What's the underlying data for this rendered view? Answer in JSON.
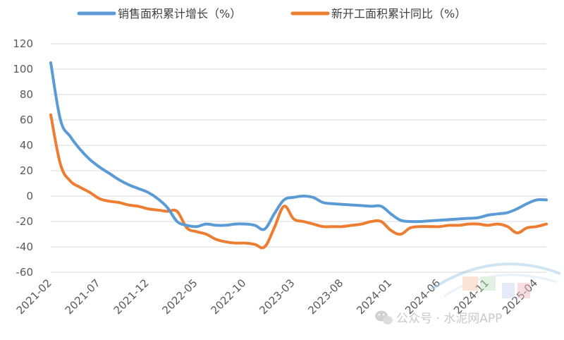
{
  "chart_data": {
    "type": "line",
    "title": "",
    "xlabel": "",
    "ylabel": "",
    "ylim": [
      -60,
      120
    ],
    "yticks": [
      -60,
      -40,
      -20,
      0,
      20,
      40,
      60,
      80,
      100,
      120
    ],
    "xtick_labels": [
      "2021-02",
      "2021-07",
      "2021-12",
      "2022-05",
      "2022-10",
      "2023-03",
      "2023-08",
      "2024-01",
      "2024-06",
      "2024-11",
      "2025-04"
    ],
    "grid": true,
    "legend_position": "top",
    "x": [
      "2021-02",
      "2021-03",
      "2021-04",
      "2021-05",
      "2021-06",
      "2021-07",
      "2021-08",
      "2021-09",
      "2021-10",
      "2021-11",
      "2021-12",
      "2022-01",
      "2022-02",
      "2022-03",
      "2022-04",
      "2022-05",
      "2022-06",
      "2022-07",
      "2022-08",
      "2022-09",
      "2022-10",
      "2022-11",
      "2022-12",
      "2023-01",
      "2023-02",
      "2023-03",
      "2023-04",
      "2023-05",
      "2023-06",
      "2023-07",
      "2023-08",
      "2023-09",
      "2023-10",
      "2023-11",
      "2023-12",
      "2024-01",
      "2024-02",
      "2024-03",
      "2024-04",
      "2024-05",
      "2024-06",
      "2024-07",
      "2024-08",
      "2024-09",
      "2024-10",
      "2024-11",
      "2024-12",
      "2025-01",
      "2025-02",
      "2025-03",
      "2025-04",
      "2025-05"
    ],
    "series": [
      {
        "name": "销售面积累计增长（%）",
        "color": "#5B9BD5",
        "values": [
          105,
          60,
          47,
          37,
          29,
          23,
          18,
          13,
          9,
          6,
          3,
          -2,
          -9,
          -20,
          -23,
          -24,
          -22,
          -23,
          -23,
          -22,
          -22,
          -23,
          -26,
          -14,
          -3,
          -1,
          0,
          -1,
          -5,
          -6,
          -6.5,
          -7,
          -7.5,
          -8,
          -8,
          -14,
          -19,
          -20,
          -20,
          -19.5,
          -19,
          -18.5,
          -18,
          -17.5,
          -17,
          -15,
          -14,
          -13,
          -10,
          -6,
          -3,
          -3
        ]
      },
      {
        "name": "新开工面积累计同比（%）",
        "color": "#ED7D31",
        "values": [
          64,
          25,
          12,
          7,
          3,
          -2,
          -4,
          -5,
          -7,
          -8,
          -10,
          -11,
          -12,
          -12,
          -25,
          -28,
          -30,
          -34,
          -36,
          -37,
          -37,
          -38,
          -40,
          -25,
          -8,
          -18,
          -20,
          -22,
          -24,
          -24,
          -24,
          -23,
          -22,
          -20,
          -20,
          -27,
          -30,
          -25,
          -24,
          -24,
          -24,
          -23,
          -23,
          -22,
          -22,
          -23,
          -22,
          -24,
          -29,
          -25,
          -24,
          -22
        ]
      }
    ]
  },
  "watermark": {
    "text": "公众号 · 水泥网APP",
    "icon": "wechat-icon"
  }
}
